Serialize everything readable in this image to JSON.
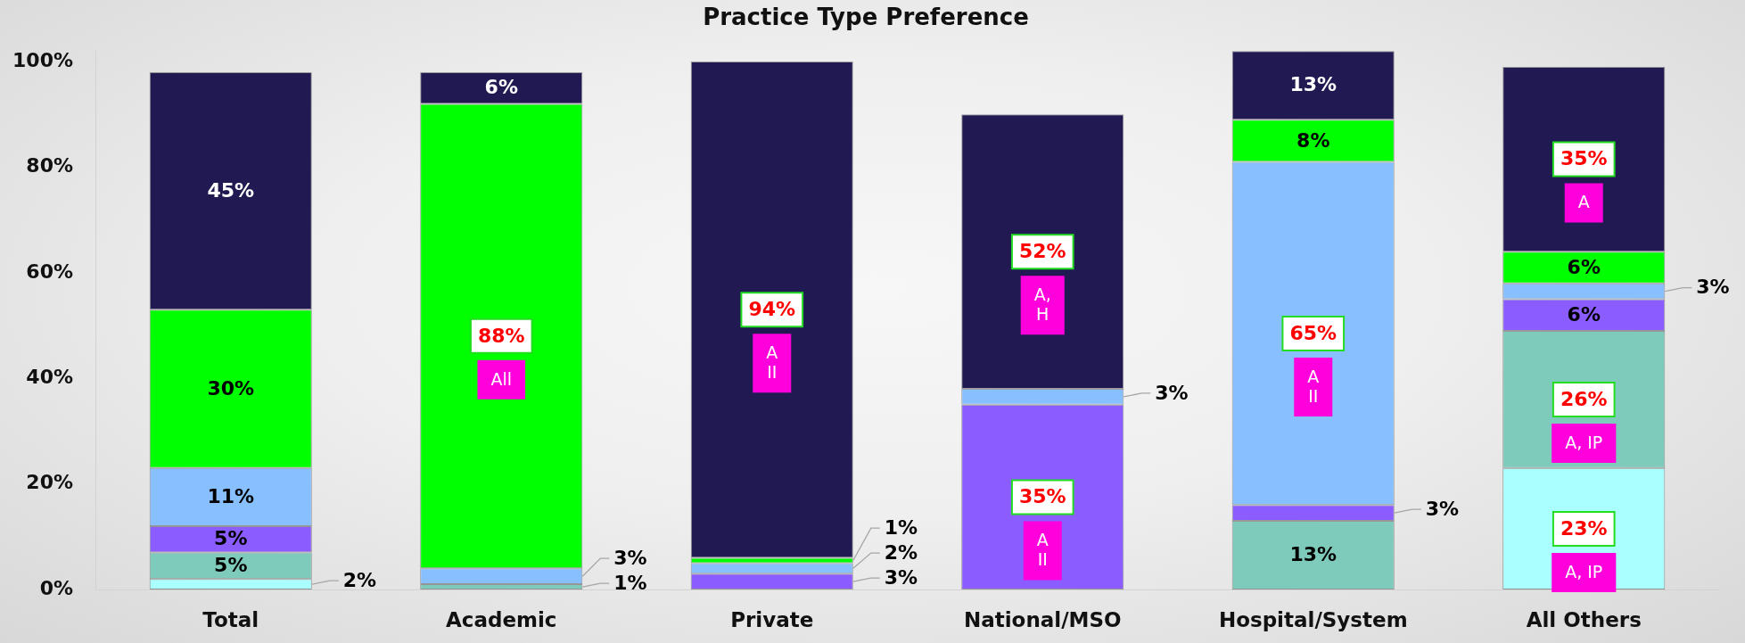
{
  "chart_data": {
    "type": "bar",
    "title": "Practice Type Preference",
    "categories": [
      "Total",
      "Academic",
      "Private",
      "National/MSO",
      "Hospital/System",
      "All Others"
    ],
    "stacked": true,
    "ylim": [
      0,
      102
    ],
    "yticks": [
      {
        "value": 0,
        "label": "0%"
      },
      {
        "value": 20,
        "label": "20%"
      },
      {
        "value": 40,
        "label": "40%"
      },
      {
        "value": 60,
        "label": "60%"
      },
      {
        "value": 80,
        "label": "80%"
      },
      {
        "value": 100,
        "label": "100%"
      }
    ],
    "series": [
      {
        "color": "#aaffff",
        "values": [
          2,
          null,
          null,
          null,
          null,
          23
        ],
        "value_labels": [
          "2%",
          null,
          null,
          null,
          null,
          "23%\nA, IP"
        ]
      },
      {
        "color": "#7fcbbb",
        "values": [
          5,
          1,
          null,
          null,
          13,
          26
        ],
        "value_labels": [
          "5%",
          "1%",
          null,
          null,
          "13%",
          "26%\nA, IP"
        ]
      },
      {
        "color": "#8b5cff",
        "values": [
          5,
          null,
          3,
          35,
          3,
          6
        ],
        "value_labels": [
          "5%",
          null,
          "3%",
          "35%\nA\nII",
          "3%",
          "6%"
        ]
      },
      {
        "color": "#88bfff",
        "values": [
          11,
          3,
          2,
          3,
          65,
          3
        ],
        "value_labels": [
          "11%",
          "3%",
          "2%",
          "3%",
          "65%\nA\nII",
          "3%"
        ]
      },
      {
        "color": "#00ff00",
        "values": [
          30,
          88,
          1,
          null,
          8,
          6
        ],
        "value_labels": [
          "30%",
          "88%\nAll",
          "1%",
          null,
          "8%",
          "6%"
        ]
      },
      {
        "color": "#211a52",
        "values": [
          45,
          6,
          94,
          52,
          13,
          35
        ],
        "value_labels": [
          "45%",
          "6%",
          "94%\nA\nII",
          "52%\nA,\nH",
          "13%",
          "35%\nA"
        ]
      }
    ]
  }
}
